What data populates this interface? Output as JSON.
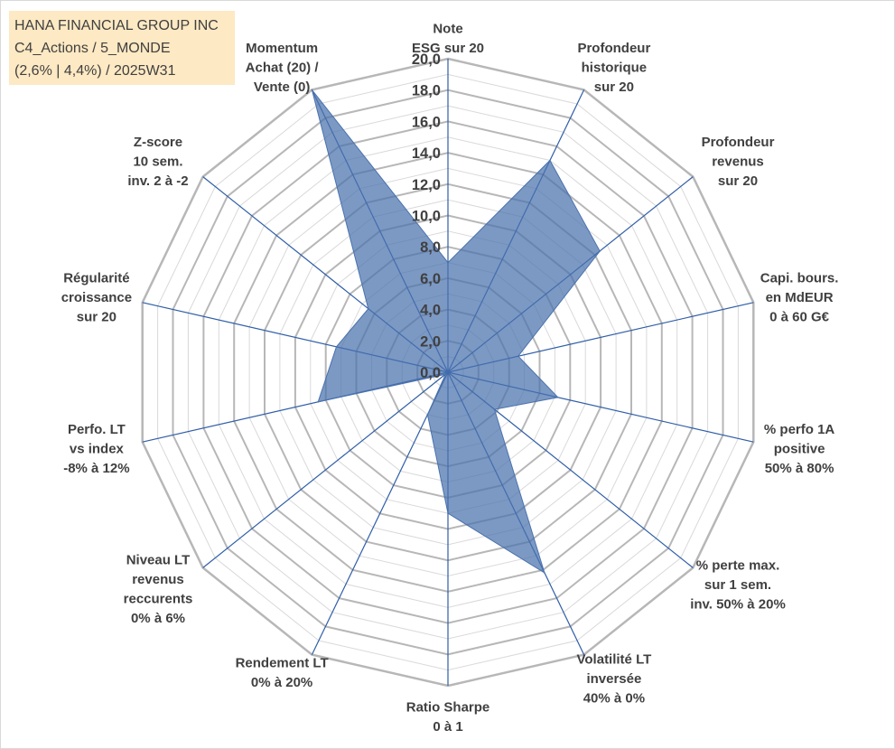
{
  "header": {
    "line1": "HANA FINANCIAL GROUP INC",
    "line2": "C4_Actions / 5_MONDE",
    "line3": "(2,6% | 4,4%) / 2025W31"
  },
  "colors": {
    "fill": "#4a72ad",
    "fill_opacity": 0.72,
    "axis_line": "#2f5ea8",
    "major_grid": "#b7b7b7",
    "minor_grid": "#d9d9d9",
    "title_bg": "#fde9c3"
  },
  "chart_data": {
    "type": "radar",
    "rmax": 20,
    "ticks": [
      "0,0",
      "2,0",
      "4,0",
      "6,0",
      "8,0",
      "10,0",
      "12,0",
      "14,0",
      "16,0",
      "18,0",
      "20,0"
    ],
    "axes": [
      {
        "label": [
          "Note",
          "ESG sur 20"
        ],
        "value": 7.0
      },
      {
        "label": [
          "Profondeur",
          "historique",
          "sur 20"
        ],
        "value": 15.0
      },
      {
        "label": [
          "Profondeur",
          "revenus",
          "sur 20"
        ],
        "value": 12.4
      },
      {
        "label": [
          "Capi. bours.",
          "en MdEUR",
          "0 à 60 G€"
        ],
        "value": 4.6
      },
      {
        "label": [
          "% perfo 1A",
          "positive",
          "50% à 80%"
        ],
        "value": 7.2
      },
      {
        "label": [
          "% perte max.",
          "sur 1 sem.",
          "inv. 50% à 20%"
        ],
        "value": 3.8
      },
      {
        "label": [
          "Volatilité LT",
          "inversée",
          "40% à 0%"
        ],
        "value": 14.2
      },
      {
        "label": [
          "Ratio Sharpe",
          "0 à 1"
        ],
        "value": 9.0
      },
      {
        "label": [
          "Rendement LT",
          "0% à 20%"
        ],
        "value": 3.0
      },
      {
        "label": [
          "Niveau LT",
          "revenus",
          "reccurents",
          "0% à 6%"
        ],
        "value": 0.2
      },
      {
        "label": [
          "Perfo. LT",
          "vs index",
          "-8% à 12%"
        ],
        "value": 8.5
      },
      {
        "label": [
          "Régularité",
          "croissance",
          "sur 20"
        ],
        "value": 7.3
      },
      {
        "label": [
          "Z-score",
          "10 sem.",
          "inv. 2 à -2"
        ],
        "value": 6.5
      },
      {
        "label": [
          "Momentum",
          "Achat (20) /",
          "Vente (0)"
        ],
        "value": 20.0
      }
    ]
  }
}
